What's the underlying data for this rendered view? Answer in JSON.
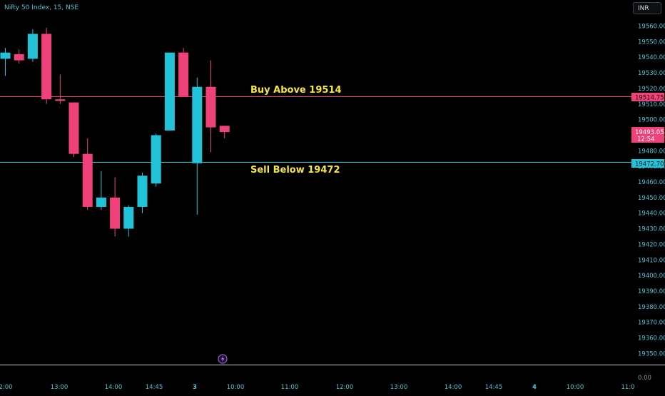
{
  "header": {
    "symbol": "Nifty 50 Index, 15, NSE",
    "currency": "INR"
  },
  "annotations": {
    "buy_text": "Buy Above 19514",
    "sell_text": "Sell Below 19472"
  },
  "price_tags": {
    "buy_level": "19514.75",
    "current_price": "19493.05",
    "countdown": "12:54",
    "sell_level": "19472.70"
  },
  "volume_axis_label": "0.00",
  "colors": {
    "background": "#000000",
    "up": "#22c3d9",
    "down": "#f0427a",
    "buy_line": "#f0427a",
    "sell_line": "#22c3d9",
    "annotation_text": "#f5e642",
    "axis_text": "#4fc3d4",
    "axis_text_dim": "#8a8f99"
  },
  "icons": {
    "lightning": "lightning-icon"
  },
  "chart_data": {
    "type": "candlestick",
    "title": "Nifty 50 Index, 15, NSE",
    "interval": "15",
    "y_ticks": [
      19560,
      19550,
      19540,
      19530,
      19520,
      19510,
      19500,
      19490,
      19480,
      19470,
      19460,
      19450,
      19440,
      19430,
      19420,
      19410,
      19400,
      19390,
      19380,
      19370,
      19360,
      19350
    ],
    "ylim": [
      19345,
      19565
    ],
    "x_tick_labels": [
      "2:00",
      "13:00",
      "14:00",
      "14:45",
      "3",
      "10:00",
      "11:00",
      "12:00",
      "13:00",
      "14:00",
      "14:45",
      "4",
      "10:00",
      "11:0"
    ],
    "x_tick_bold": [
      "3",
      "4"
    ],
    "candles": [
      {
        "o": 19539,
        "h": 19546,
        "l": 19528,
        "c": 19543
      },
      {
        "o": 19542,
        "h": 19545,
        "l": 19536,
        "c": 19538
      },
      {
        "o": 19539,
        "h": 19558,
        "l": 19537,
        "c": 19555
      },
      {
        "o": 19555,
        "h": 19559,
        "l": 19510,
        "c": 19513
      },
      {
        "o": 19513,
        "h": 19529,
        "l": 19510,
        "c": 19512
      },
      {
        "o": 19511,
        "h": 19511,
        "l": 19476,
        "c": 19478
      },
      {
        "o": 19478,
        "h": 19488,
        "l": 19442,
        "c": 19444
      },
      {
        "o": 19444,
        "h": 19467,
        "l": 19442,
        "c": 19450
      },
      {
        "o": 19450,
        "h": 19463,
        "l": 19425,
        "c": 19430
      },
      {
        "o": 19430,
        "h": 19445,
        "l": 19425,
        "c": 19444
      },
      {
        "o": 19444,
        "h": 19466,
        "l": 19440,
        "c": 19464
      },
      {
        "o": 19459,
        "h": 19491,
        "l": 19457,
        "c": 19490
      },
      {
        "o": 19493,
        "h": 19543,
        "l": 19493,
        "c": 19543
      },
      {
        "o": 19543,
        "h": 19546,
        "l": 19515,
        "c": 19515
      },
      {
        "o": 19472,
        "h": 19527,
        "l": 19439,
        "c": 19521
      },
      {
        "o": 19521,
        "h": 19538,
        "l": 19479,
        "c": 19495
      },
      {
        "o": 19496,
        "h": 19496,
        "l": 19488,
        "c": 19492
      }
    ],
    "horizontal_lines": [
      {
        "name": "Buy Above 19514",
        "value": 19514.75
      },
      {
        "name": "Sell Below 19472",
        "value": 19472.7
      }
    ],
    "current_price": 19493.05,
    "grid": false
  }
}
